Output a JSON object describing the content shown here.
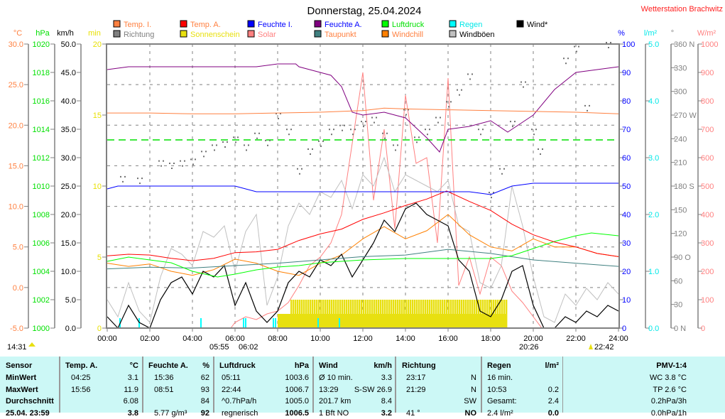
{
  "title": "Donnerstag, 25.04.2024",
  "station": "Wetterstation Brachwitz",
  "legend": [
    {
      "label": "Temp. I.",
      "color": "#ff8040",
      "text_color": "#ff8040"
    },
    {
      "label": "Temp. A.",
      "color": "#ff0000",
      "text_color": "#ff8040"
    },
    {
      "label": "Feuchte I.",
      "color": "#0000ff",
      "text_color": "#0000ff"
    },
    {
      "label": "Feuchte A.",
      "color": "#800080",
      "text_color": "#0000ff"
    },
    {
      "label": "Luftdruck",
      "color": "#00ff00",
      "text_color": "#00e000"
    },
    {
      "label": "Regen",
      "color": "#00ffff",
      "text_color": "#00e8e8"
    },
    {
      "label": "Wind*",
      "color": "#000000",
      "text_color": "#000000"
    },
    {
      "label": "Richtung",
      "color": "#808080",
      "text_color": "#808080"
    },
    {
      "label": "Sonnenschein",
      "color": "#e8e010",
      "text_color": "#e8e010"
    },
    {
      "label": "Solar",
      "color": "#ff8080",
      "text_color": "#ff8080"
    },
    {
      "label": "Taupunkt",
      "color": "#408080",
      "text_color": "#ff8040"
    },
    {
      "label": "Windchill",
      "color": "#ff8000",
      "text_color": "#ff8040"
    },
    {
      "label": "Windböen",
      "color": "#c0c0c0",
      "text_color": "#000000"
    }
  ],
  "chart_data": {
    "type": "line",
    "title": "Donnerstag, 25.04.2024",
    "x_unit": "hour",
    "xlim": [
      0,
      24
    ],
    "x_ticks": [
      "00:00",
      "02:00",
      "04:00",
      "06:00",
      "08:00",
      "10:00",
      "12:00",
      "14:00",
      "16:00",
      "18:00",
      "20:00",
      "22:00",
      "24:00"
    ],
    "axes": [
      {
        "unit": "°C",
        "min": -5,
        "max": 30,
        "ticks": [
          "30.0",
          "25.0",
          "20.0",
          "15.0",
          "10.0",
          "5.0",
          "0.0",
          "-5.0"
        ],
        "color": "#ff8040"
      },
      {
        "unit": "hPa",
        "min": 1000,
        "max": 1020,
        "ticks": [
          "1020",
          "1018",
          "1016",
          "1014",
          "1012",
          "1010",
          "1008",
          "1006",
          "1004",
          "1002",
          "1000"
        ],
        "color": "#00e000"
      },
      {
        "unit": "km/h",
        "min": 0,
        "max": 50,
        "ticks": [
          "50.0",
          "45.0",
          "40.0",
          "35.0",
          "30.0",
          "25.0",
          "20.0",
          "15.0",
          "10.0",
          "5.0",
          "0.0"
        ],
        "color": "#000000"
      },
      {
        "unit": "min",
        "min": 0,
        "max": 20,
        "ticks": [
          "20",
          "15",
          "10",
          "5",
          "0"
        ],
        "color": "#e8e000"
      },
      {
        "unit": "%",
        "min": 0,
        "max": 100,
        "ticks": [
          "100",
          "90",
          "80",
          "70",
          "60",
          "50",
          "40",
          "30",
          "20",
          "10",
          "0"
        ],
        "color": "#0000ff"
      },
      {
        "unit": "l/m²",
        "min": 0,
        "max": 5,
        "ticks": [
          "5.0",
          "4.0",
          "3.0",
          "2.0",
          "1.0",
          "0.0"
        ],
        "color": "#00e8e8"
      },
      {
        "unit": "°",
        "min": 0,
        "max": 360,
        "ticks": [
          "360 N",
          "330",
          "300",
          "270 W",
          "240",
          "210",
          "180 S",
          "150",
          "120",
          "90  O",
          "60",
          "30",
          "0    N"
        ],
        "color": "#808080"
      },
      {
        "unit": "W/m²",
        "min": 0,
        "max": 1000,
        "ticks": [
          "1000",
          "900",
          "800",
          "700",
          "600",
          "500",
          "400",
          "300",
          "200",
          "100",
          "0"
        ],
        "color": "#ff8080"
      }
    ],
    "series": [
      {
        "name": "Temp. I.",
        "axis": "°C",
        "color": "#ff8040",
        "x": [
          0,
          2,
          4,
          6,
          8,
          10,
          12,
          13,
          14,
          16,
          18,
          20,
          22,
          24
        ],
        "values": [
          21.5,
          21.5,
          21.4,
          21.4,
          21.5,
          21.6,
          21.8,
          22.1,
          22.0,
          21.9,
          21.8,
          21.7,
          21.6,
          21.4
        ]
      },
      {
        "name": "Temp. A.",
        "axis": "°C",
        "color": "#ff0000",
        "x": [
          0,
          1,
          2,
          3,
          4,
          5,
          6,
          7,
          8,
          9,
          10,
          11,
          12,
          13,
          14,
          15,
          15.93,
          17,
          18,
          19,
          20,
          21,
          22,
          23,
          24
        ],
        "values": [
          3.9,
          4.1,
          4.0,
          3.6,
          3.3,
          3.6,
          4.3,
          4.4,
          4.7,
          5.8,
          6.6,
          7.2,
          8.4,
          9.2,
          10.1,
          10.9,
          11.9,
          10.6,
          9.5,
          7.8,
          6.5,
          5.6,
          5.0,
          4.2,
          3.8
        ]
      },
      {
        "name": "Feuchte I.",
        "axis": "%",
        "color": "#0000ff",
        "x": [
          0,
          0.5,
          1,
          3,
          5,
          6,
          7,
          9,
          12,
          15,
          17,
          18,
          19,
          20,
          22,
          24
        ],
        "values": [
          49,
          50,
          50,
          50,
          50,
          50,
          48,
          48,
          48,
          48,
          48,
          47,
          50,
          51,
          51,
          51
        ]
      },
      {
        "name": "Feuchte A.",
        "axis": "%",
        "color": "#800080",
        "x": [
          0,
          1,
          2,
          3,
          4,
          5,
          6,
          7,
          8,
          8.85,
          9,
          10,
          10.5,
          11,
          11.5,
          12,
          13,
          14,
          15,
          15.6,
          16,
          17,
          18,
          18.8,
          19,
          20,
          21,
          22,
          23,
          24
        ],
        "values": [
          91,
          92,
          92,
          92,
          92,
          92,
          92,
          92,
          93,
          93,
          92,
          90,
          89,
          85,
          76,
          75,
          76,
          74,
          67,
          62,
          70,
          71,
          73,
          69,
          70,
          75,
          84,
          90,
          91,
          92
        ]
      },
      {
        "name": "Luftdruck",
        "axis": "hPa",
        "color": "#00ff00",
        "x": [
          0,
          1,
          2,
          3,
          4,
          5.18,
          6,
          7,
          8,
          9,
          10,
          12,
          14,
          16,
          18,
          19,
          20,
          21,
          22,
          22.73,
          24
        ],
        "values": [
          1004.7,
          1005.0,
          1004.8,
          1004.6,
          1004.0,
          1003.6,
          1003.8,
          1004.1,
          1004.3,
          1004.4,
          1004.6,
          1004.8,
          1004.9,
          1004.9,
          1004.9,
          1005.1,
          1005.6,
          1006.1,
          1006.5,
          1006.7,
          1006.5
        ]
      },
      {
        "name": "Taupunkt",
        "axis": "°C",
        "color": "#408080",
        "x": [
          0,
          2,
          4,
          6,
          8,
          10,
          12,
          14,
          16,
          18,
          20,
          22,
          24
        ],
        "values": [
          2.3,
          2.5,
          2.4,
          2.7,
          3.0,
          3.4,
          3.8,
          4.0,
          4.7,
          4.2,
          3.4,
          3.0,
          2.6
        ]
      },
      {
        "name": "Windchill",
        "axis": "°C",
        "color": "#ff8000",
        "x": [
          0,
          1,
          2,
          3,
          4,
          5,
          6,
          7,
          8,
          9,
          10,
          11,
          12,
          13,
          14,
          15,
          16,
          17,
          18,
          19,
          20,
          21,
          22,
          23,
          24
        ],
        "values": [
          3.0,
          2.6,
          2.9,
          2.0,
          1.5,
          2.2,
          3.5,
          3.0,
          2.0,
          1.5,
          3.0,
          4.0,
          6.0,
          7.5,
          6.0,
          7.0,
          9.0,
          6.5,
          5.0,
          4.5,
          6.0,
          5.0,
          5.0,
          4.2,
          3.8
        ]
      },
      {
        "name": "Wind*",
        "axis": "km/h",
        "color": "#000000",
        "x": [
          0,
          0.5,
          1,
          1.5,
          2,
          2.5,
          3,
          3.5,
          4,
          4.5,
          5,
          5.5,
          6,
          6.5,
          7,
          7.5,
          8,
          8.5,
          9,
          9.5,
          10,
          10.5,
          11,
          11.5,
          12,
          12.5,
          13,
          13.5,
          14,
          14.5,
          15,
          15.5,
          16,
          16.5,
          17,
          17.5,
          18,
          18.5,
          19,
          19.5,
          20,
          20.5,
          21,
          21.5,
          22,
          22.5,
          23,
          23.5,
          24
        ],
        "values": [
          2,
          0,
          4,
          1,
          0,
          5,
          8,
          9,
          6,
          10,
          9,
          11,
          4,
          8,
          3,
          1,
          3,
          8,
          10,
          9,
          12,
          11,
          13,
          9,
          12,
          15,
          19,
          17,
          21,
          22,
          20,
          19,
          18,
          12,
          10,
          3,
          2,
          5,
          10,
          11,
          4,
          0,
          0,
          2,
          1,
          3,
          2,
          4,
          3
        ]
      },
      {
        "name": "Windböen",
        "axis": "km/h",
        "color": "#c0c0c0",
        "x": [
          0,
          0.5,
          1,
          1.5,
          2,
          2.5,
          3,
          3.5,
          4,
          4.5,
          5,
          5.5,
          6,
          6.5,
          7,
          7.5,
          8,
          8.5,
          9,
          9.5,
          10,
          10.5,
          11,
          11.5,
          12,
          12.5,
          13,
          13.5,
          14,
          14.5,
          15,
          15.5,
          16,
          16.5,
          17,
          17.5,
          18,
          18.5,
          19,
          19.5,
          20,
          20.5,
          21,
          21.5,
          22,
          22.5,
          23,
          23.5,
          24
        ],
        "values": [
          5,
          2,
          8,
          3,
          1,
          9,
          14,
          13,
          11,
          17,
          16,
          18,
          10,
          17,
          20,
          4,
          9,
          18,
          22,
          20,
          24,
          23,
          26,
          21,
          27,
          25,
          30,
          24,
          27,
          26,
          25,
          24,
          26,
          18,
          17,
          8,
          7,
          11,
          25,
          18,
          9,
          2,
          1,
          6,
          4,
          7,
          5,
          8,
          6
        ]
      }
    ],
    "richtung_deg": {
      "x": [
        0.7,
        1.5,
        2.5,
        3,
        3.5,
        4,
        4.5,
        5,
        5.5,
        6,
        6.5,
        7,
        7.5,
        8,
        8.5,
        9,
        9.5,
        10,
        10.5,
        11,
        11.5,
        12,
        12.5,
        13,
        13.5,
        14,
        14.5,
        15,
        15.5,
        16,
        16.5,
        17,
        17.5,
        18,
        18.5,
        19,
        19.5,
        20,
        20.3,
        21.5,
        22,
        22.5,
        23.5
      ],
      "values": [
        190,
        188,
        210,
        207,
        210,
        212,
        222,
        230,
        234,
        240,
        230,
        245,
        236,
        270,
        250,
        200,
        225,
        235,
        250,
        255,
        250,
        260,
        265,
        245,
        230,
        275,
        240,
        250,
        265,
        285,
        300,
        320,
        250,
        170,
        200,
        260,
        310,
        250,
        225,
        340,
        355,
        280,
        365
      ]
    },
    "solar_wm2": {
      "x": [
        0,
        5.8,
        6,
        6.5,
        7,
        7.5,
        8,
        8.5,
        9,
        9.5,
        10,
        10.5,
        11,
        11.5,
        12,
        12.5,
        13,
        13.5,
        14,
        14.5,
        15,
        15.5,
        16,
        16.5,
        17,
        17.5,
        18,
        18.5,
        19,
        19.5,
        20,
        20.4,
        24
      ],
      "values": [
        0,
        0,
        20,
        40,
        30,
        50,
        60,
        90,
        150,
        220,
        250,
        300,
        400,
        650,
        900,
        450,
        700,
        350,
        820,
        580,
        600,
        300,
        880,
        150,
        250,
        120,
        250,
        220,
        130,
        90,
        40,
        0,
        0
      ]
    },
    "sonnenschein_min": {
      "x": [
        8.0,
        8.5,
        18.75
      ],
      "values": [
        1,
        2,
        0
      ]
    },
    "regen_times": [
      0.6,
      1.5,
      4.4,
      6.4,
      6.5,
      7.8,
      7.9,
      9.9,
      10.9
    ],
    "reference_pressure_hpa": 1013.25,
    "sun_events": {
      "left": "14:31",
      "sunrise": "05:55",
      "sunrise2": "06:02",
      "sunset": "20:26",
      "moon": "22:42"
    }
  },
  "table": {
    "headers": {
      "sensor": "Sensor",
      "temp": "Temp. A.",
      "temp_unit": "°C",
      "hum": "Feuchte A.",
      "hum_unit": "%",
      "press": "Luftdruck",
      "press_unit": "hPa",
      "wind": "Wind",
      "wind_unit": "km/h",
      "dir": "Richtung",
      "rain": "Regen",
      "rain_unit": "l/m²",
      "pmv": "PMV-1:4"
    },
    "rows": [
      {
        "label": "MinWert",
        "temp_t": "04:25",
        "temp_v": "3.1",
        "hum_t": "15:36",
        "hum_v": "62",
        "press_t": "05:11",
        "press_v": "1003.6",
        "wind_t": "Ø 10 min.",
        "wind_v": "3.3",
        "dir_t": "23:17",
        "dir_v": "N",
        "rain_t": "16 min.",
        "rain_v": "",
        "pmv": "WC 3.8 °C"
      },
      {
        "label": "MaxWert",
        "temp_t": "15:56",
        "temp_v": "11.9",
        "hum_t": "08:51",
        "hum_v": "93",
        "press_t": "22:44",
        "press_v": "1006.7",
        "wind_t": "13:29",
        "wind_v": "S-SW 26.9",
        "dir_t": "21:29",
        "dir_v": "N",
        "rain_t": "10:53",
        "rain_v": "0.2",
        "pmv": "TP 2.6 °C"
      },
      {
        "label": "Durchschnitt",
        "temp_t": "",
        "temp_v": "6.08",
        "hum_t": "",
        "hum_v": "84",
        "press_t": "^0.7hPa/h",
        "press_v": "1005.0",
        "wind_t": "201.7 km",
        "wind_v": "8.4",
        "dir_t": "",
        "dir_v": "SW",
        "rain_t": "Gesamt:",
        "rain_v": "2.4",
        "pmv": "0.2hPa/3h"
      },
      {
        "label": "25.04. 23:59",
        "temp_t": "",
        "temp_v": "3.8",
        "hum_t": "5.77 g/m³",
        "hum_v": "92",
        "press_t": "regnerisch",
        "press_v": "1006.5",
        "wind_t": "1 Bft NO",
        "wind_v": "3.2",
        "dir_t": "41 °",
        "dir_v": "NO",
        "rain_t": "2.4 l/m²",
        "rain_v": "0.0",
        "pmv": "0.0hPa/1h"
      }
    ]
  }
}
